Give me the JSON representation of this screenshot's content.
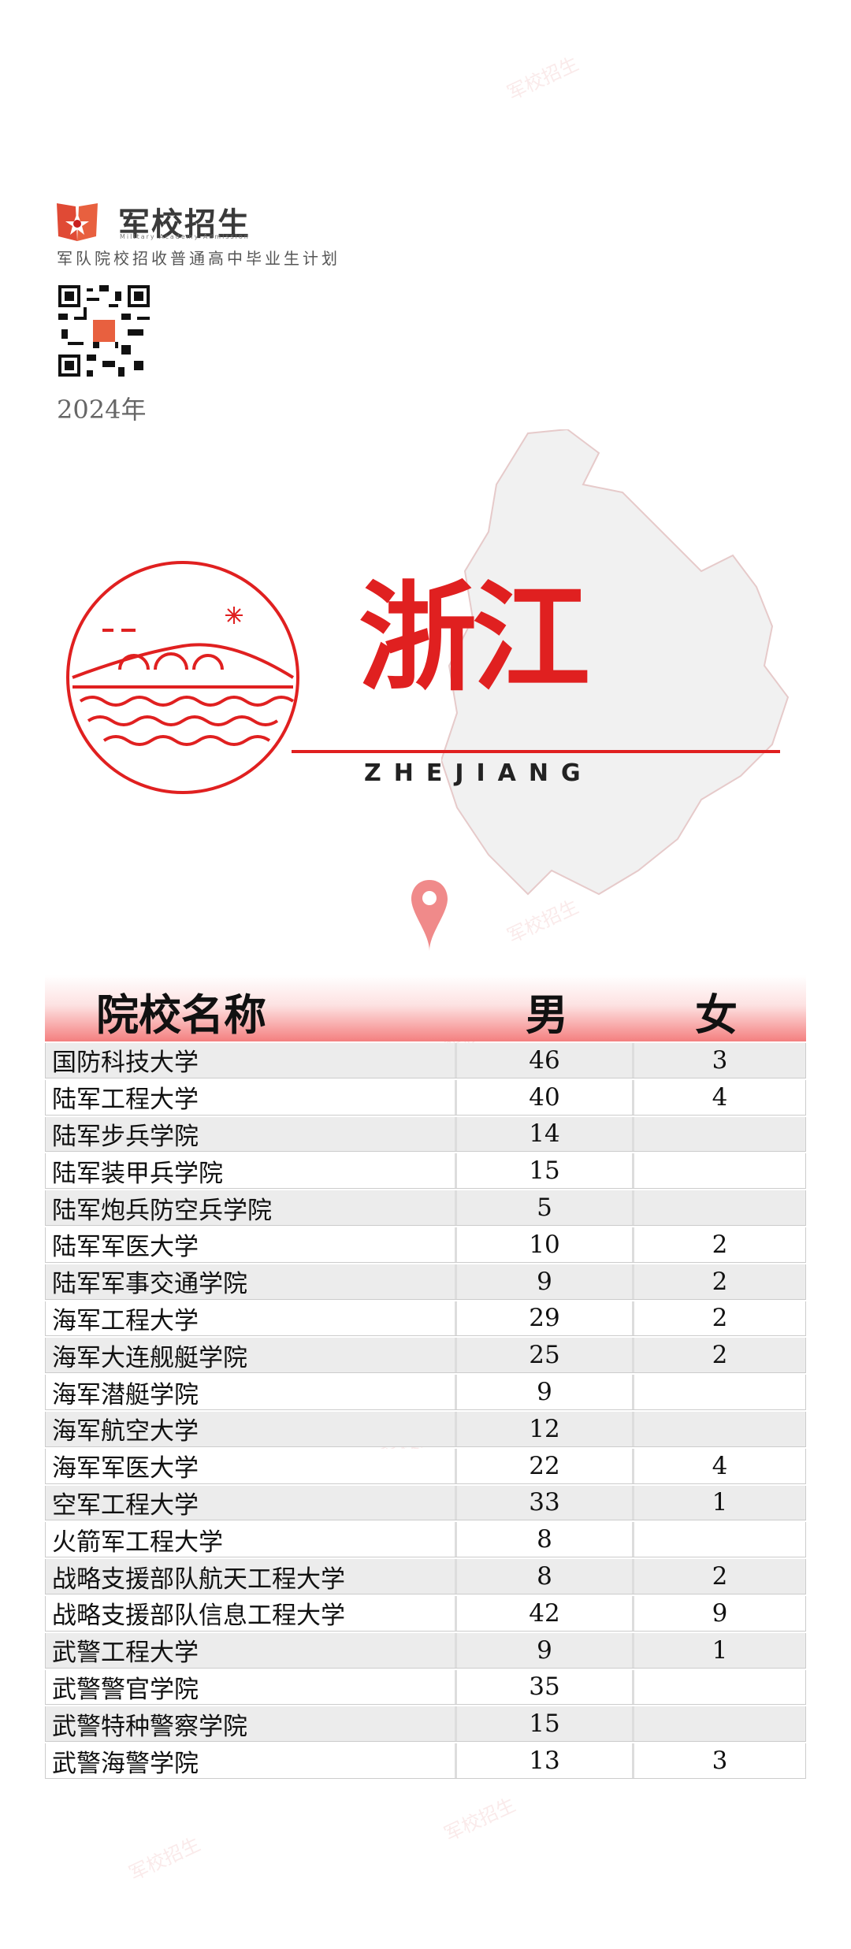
{
  "brand": {
    "name": "军校招生",
    "tagline": "Military  Academy Admission"
  },
  "subtitle": "军队院校招收普通高中毕业生计划",
  "year": "2024年",
  "province": {
    "name": "浙江",
    "pinyin": "ZHEJIANG"
  },
  "watermark": "军校招生",
  "colors": {
    "accent": "#e02020",
    "map": "#f1f1f1"
  },
  "table": {
    "headers": {
      "name": "院校名称",
      "male": "男",
      "female": "女"
    },
    "rows": [
      {
        "name": "国防科技大学",
        "male": "46",
        "female": "3"
      },
      {
        "name": "陆军工程大学",
        "male": "40",
        "female": "4"
      },
      {
        "name": "陆军步兵学院",
        "male": "14",
        "female": ""
      },
      {
        "name": "陆军装甲兵学院",
        "male": "15",
        "female": ""
      },
      {
        "name": "陆军炮兵防空兵学院",
        "male": "5",
        "female": ""
      },
      {
        "name": "陆军军医大学",
        "male": "10",
        "female": "2"
      },
      {
        "name": "陆军军事交通学院",
        "male": "9",
        "female": "2"
      },
      {
        "name": "海军工程大学",
        "male": "29",
        "female": "2"
      },
      {
        "name": "海军大连舰艇学院",
        "male": "25",
        "female": "2"
      },
      {
        "name": "海军潜艇学院",
        "male": "9",
        "female": ""
      },
      {
        "name": "海军航空大学",
        "male": "12",
        "female": ""
      },
      {
        "name": "海军军医大学",
        "male": "22",
        "female": "4"
      },
      {
        "name": "空军工程大学",
        "male": "33",
        "female": "1"
      },
      {
        "name": "火箭军工程大学",
        "male": "8",
        "female": ""
      },
      {
        "name": "战略支援部队航天工程大学",
        "male": "8",
        "female": "2"
      },
      {
        "name": "战略支援部队信息工程大学",
        "male": "42",
        "female": "9"
      },
      {
        "name": "武警工程大学",
        "male": "9",
        "female": "1"
      },
      {
        "name": "武警警官学院",
        "male": "35",
        "female": ""
      },
      {
        "name": "武警特种警察学院",
        "male": "15",
        "female": ""
      },
      {
        "name": "武警海警学院",
        "male": "13",
        "female": "3"
      }
    ]
  }
}
